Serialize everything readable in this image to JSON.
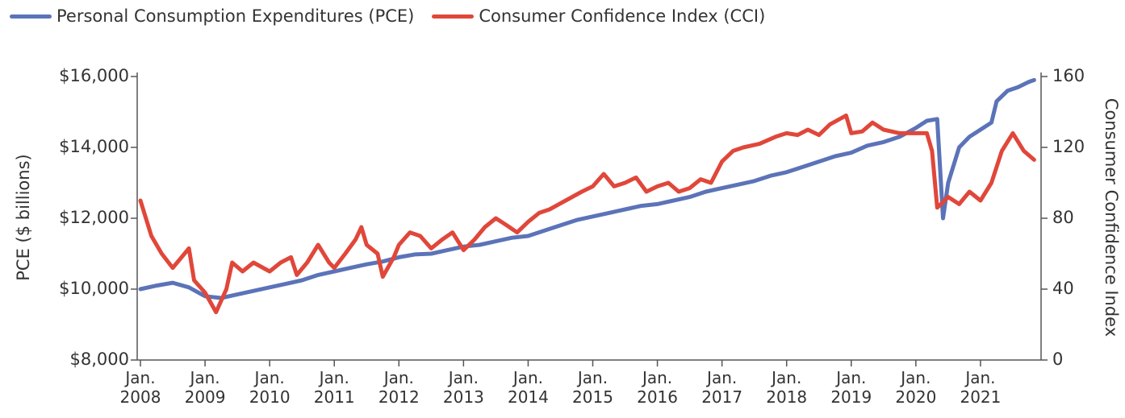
{
  "chart_data": {
    "type": "line",
    "ylabel": "PCE ($ billions)",
    "y2label": "Consumer Confidence Index",
    "xlim": [
      2008,
      2022
    ],
    "xticks": [
      {
        "value": 2008,
        "label": "Jan. 2008"
      },
      {
        "value": 2009,
        "label": "Jan. 2009"
      },
      {
        "value": 2010,
        "label": "Jan. 2010"
      },
      {
        "value": 2011,
        "label": "Jan. 2011"
      },
      {
        "value": 2012,
        "label": "Jan. 2012"
      },
      {
        "value": 2013,
        "label": "Jan. 2013"
      },
      {
        "value": 2014,
        "label": "Jan. 2014"
      },
      {
        "value": 2015,
        "label": "Jan. 2015"
      },
      {
        "value": 2016,
        "label": "Jan. 2016"
      },
      {
        "value": 2017,
        "label": "Jan. 2017"
      },
      {
        "value": 2018,
        "label": "Jan. 2018"
      },
      {
        "value": 2019,
        "label": "Jan. 2019"
      },
      {
        "value": 2020,
        "label": "Jan. 2020"
      },
      {
        "value": 2021,
        "label": "Jan. 2021"
      }
    ],
    "ylim": [
      8000,
      16000
    ],
    "yticks": [
      {
        "value": 8000,
        "label": "$8,000"
      },
      {
        "value": 10000,
        "label": "$10,000"
      },
      {
        "value": 12000,
        "label": "$12,000"
      },
      {
        "value": 14000,
        "label": "$14,000"
      },
      {
        "value": 16000,
        "label": "$16,000"
      }
    ],
    "y2lim": [
      0,
      160
    ],
    "y2ticks": [
      0,
      40,
      80,
      120,
      160
    ],
    "grid": false,
    "legend": "top-left",
    "series": [
      {
        "name": "Personal Consumption Expenditures (PCE)",
        "color": "#5b73b8",
        "axis": "y",
        "x": [
          2008.0,
          2008.25,
          2008.5,
          2008.75,
          2009.0,
          2009.25,
          2009.5,
          2009.75,
          2010.0,
          2010.25,
          2010.5,
          2010.75,
          2011.0,
          2011.25,
          2011.5,
          2011.75,
          2012.0,
          2012.25,
          2012.5,
          2012.75,
          2013.0,
          2013.25,
          2013.5,
          2013.75,
          2014.0,
          2014.25,
          2014.5,
          2014.75,
          2015.0,
          2015.25,
          2015.5,
          2015.75,
          2016.0,
          2016.25,
          2016.5,
          2016.75,
          2017.0,
          2017.25,
          2017.5,
          2017.75,
          2018.0,
          2018.25,
          2018.5,
          2018.75,
          2019.0,
          2019.25,
          2019.5,
          2019.75,
          2020.0,
          2020.17,
          2020.33,
          2020.42,
          2020.5,
          2020.67,
          2020.83,
          2021.0,
          2021.17,
          2021.25,
          2021.42,
          2021.58,
          2021.75,
          2021.83
        ],
        "values": [
          10000,
          10100,
          10180,
          10050,
          9800,
          9750,
          9850,
          9950,
          10050,
          10150,
          10250,
          10400,
          10500,
          10600,
          10700,
          10780,
          10900,
          10980,
          11000,
          11100,
          11200,
          11250,
          11350,
          11450,
          11500,
          11650,
          11800,
          11950,
          12050,
          12150,
          12250,
          12350,
          12400,
          12500,
          12600,
          12750,
          12850,
          12950,
          13050,
          13200,
          13300,
          13450,
          13600,
          13750,
          13850,
          14050,
          14150,
          14300,
          14550,
          14750,
          14800,
          12000,
          13000,
          14000,
          14300,
          14500,
          14700,
          15300,
          15600,
          15700,
          15850,
          15900
        ]
      },
      {
        "name": "Consumer Confidence Index (CCI)",
        "color": "#e0473a",
        "axis": "y2",
        "x": [
          2008.0,
          2008.17,
          2008.33,
          2008.5,
          2008.75,
          2008.83,
          2009.0,
          2009.17,
          2009.33,
          2009.42,
          2009.58,
          2009.75,
          2010.0,
          2010.17,
          2010.33,
          2010.42,
          2010.58,
          2010.75,
          2010.92,
          2011.0,
          2011.17,
          2011.33,
          2011.42,
          2011.5,
          2011.67,
          2011.75,
          2011.92,
          2012.0,
          2012.17,
          2012.33,
          2012.5,
          2012.67,
          2012.83,
          2013.0,
          2013.17,
          2013.33,
          2013.5,
          2013.67,
          2013.83,
          2014.0,
          2014.17,
          2014.33,
          2014.58,
          2014.83,
          2015.0,
          2015.17,
          2015.33,
          2015.5,
          2015.67,
          2015.83,
          2016.0,
          2016.17,
          2016.33,
          2016.5,
          2016.67,
          2016.83,
          2017.0,
          2017.17,
          2017.33,
          2017.58,
          2017.83,
          2018.0,
          2018.17,
          2018.33,
          2018.5,
          2018.67,
          2018.92,
          2019.0,
          2019.17,
          2019.33,
          2019.5,
          2019.75,
          2020.0,
          2020.17,
          2020.25,
          2020.33,
          2020.5,
          2020.67,
          2020.83,
          2021.0,
          2021.17,
          2021.33,
          2021.5,
          2021.67,
          2021.83
        ],
        "values": [
          90,
          70,
          60,
          52,
          63,
          45,
          38,
          27,
          40,
          55,
          50,
          55,
          50,
          55,
          58,
          48,
          55,
          65,
          55,
          52,
          60,
          68,
          75,
          65,
          60,
          47,
          58,
          65,
          72,
          70,
          63,
          68,
          72,
          62,
          68,
          75,
          80,
          76,
          72,
          78,
          83,
          85,
          90,
          95,
          98,
          105,
          98,
          100,
          103,
          95,
          98,
          100,
          95,
          97,
          102,
          100,
          112,
          118,
          120,
          122,
          126,
          128,
          127,
          130,
          127,
          133,
          138,
          128,
          129,
          134,
          130,
          128,
          128,
          128,
          118,
          86,
          92,
          88,
          95,
          90,
          100,
          118,
          128,
          118,
          113
        ]
      }
    ]
  }
}
